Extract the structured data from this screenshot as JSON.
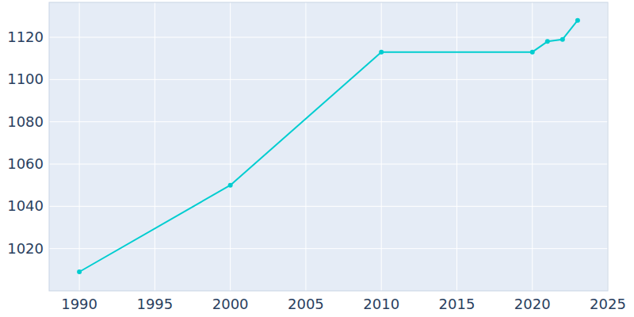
{
  "chart_data": {
    "type": "line",
    "x": [
      1990,
      2000,
      2010,
      2020,
      2021,
      2022,
      2023
    ],
    "values": [
      1009,
      1050,
      1113,
      1113,
      1118,
      1119,
      1128
    ],
    "color": "#00cdd0",
    "marker": "circle",
    "xlim": [
      1988,
      2025
    ],
    "xticks": [
      1990,
      1995,
      2000,
      2005,
      2010,
      2015,
      2020,
      2025
    ],
    "ylim": [
      1000,
      1136.5
    ],
    "yticks": [
      1020,
      1040,
      1060,
      1080,
      1100,
      1120
    ],
    "grid": true
  }
}
